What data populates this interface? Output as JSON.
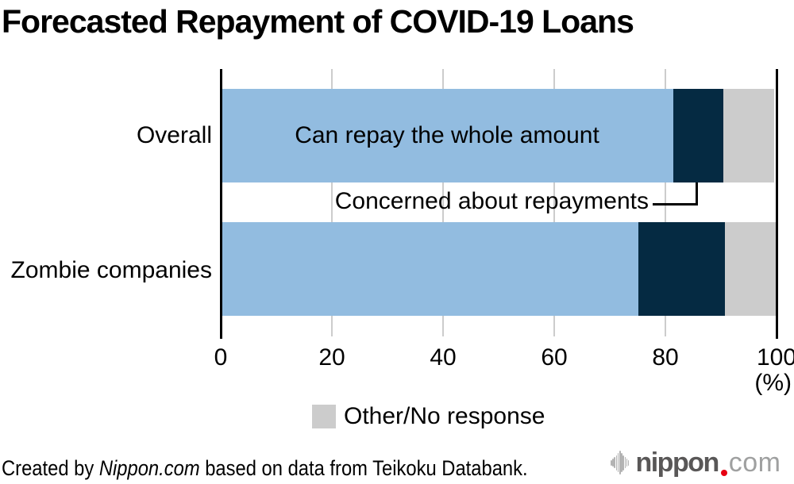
{
  "title": "Forecasted Repayment of COVID-19 Loans",
  "chart_data": {
    "type": "bar",
    "orientation": "horizontal-stacked",
    "categories": [
      "Overall",
      "Zombie companies"
    ],
    "series": [
      {
        "name": "Can repay the whole amount",
        "color": "#92bce0",
        "values": [
          81.4,
          75.1
        ]
      },
      {
        "name": "Concerned about repayments",
        "color": "#052a42",
        "values": [
          9.0,
          15.5
        ]
      },
      {
        "name": "Other/No response",
        "color": "#cccccc",
        "values": [
          9.1,
          9.1
        ]
      }
    ],
    "xlim": [
      0,
      100
    ],
    "xticks": [
      0,
      20,
      40,
      60,
      80,
      100
    ],
    "unit_label": "(%)",
    "grid": true,
    "legend_position": "bottom",
    "annotations": {
      "in_bar_label": "Can repay the whole amount",
      "callout_label": "Concerned about repayments"
    }
  },
  "legend": {
    "label": "Other/No response",
    "swatch_color": "#cccccc"
  },
  "footer": {
    "prefix": "Created by ",
    "source": "Nippon.com",
    "suffix": " based on data from Teikoku Databank."
  },
  "logo": {
    "wordmark": "nippon",
    "tld": "com",
    "dot_color": "#e60012"
  },
  "colors": {
    "bar_blue": "#92bce0",
    "bar_navy": "#052a42",
    "bar_gray": "#cccccc",
    "gridline": "#cccccc",
    "axis": "#000000"
  }
}
